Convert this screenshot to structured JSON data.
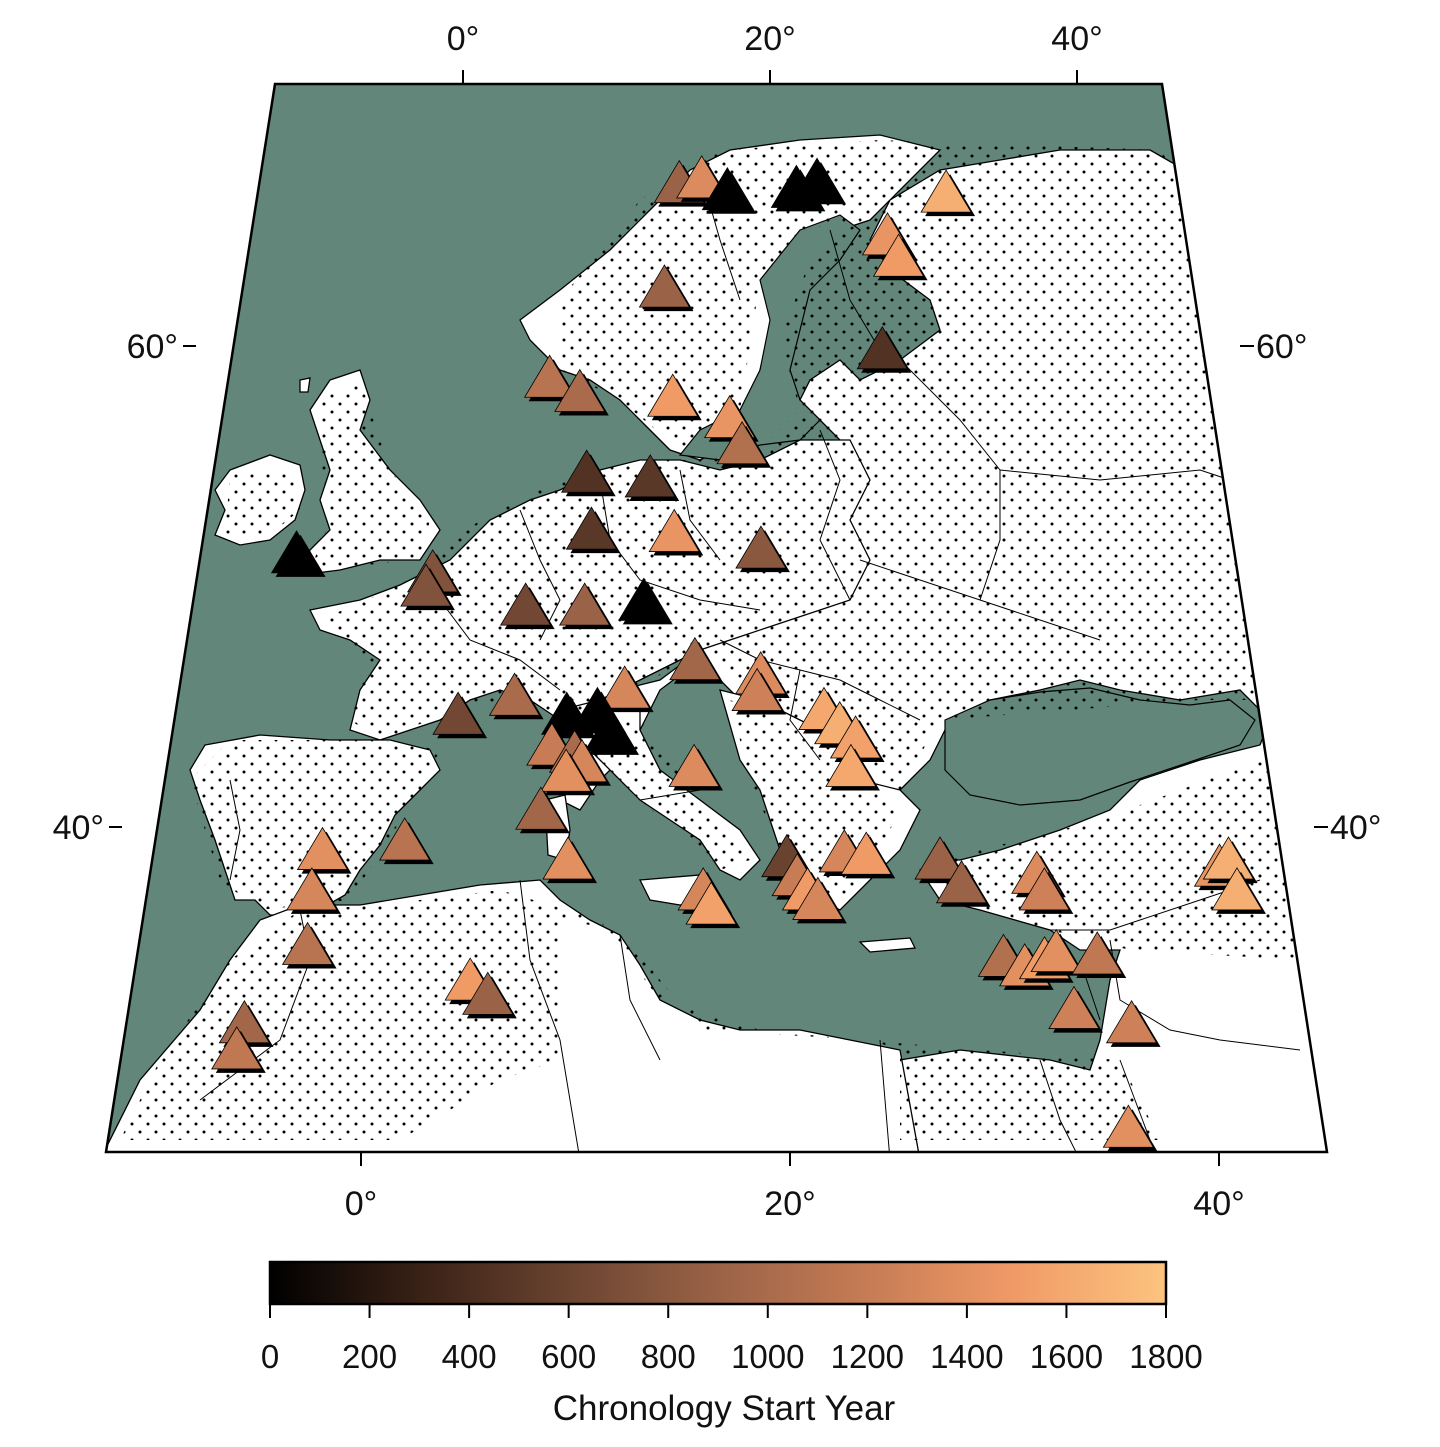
{
  "map": {
    "top_axis_ticks": [
      "0°",
      "20°",
      "40°"
    ],
    "bottom_axis_ticks": [
      "0°",
      "20°",
      "40°"
    ],
    "left_axis_ticks": [
      "60°",
      "40°"
    ],
    "right_axis_ticks": [
      "60°",
      "40°"
    ],
    "colors": {
      "sea": "#62877a",
      "land": "#ffffff",
      "border": "#000000",
      "dots": "#000000"
    }
  },
  "colorbar": {
    "title": "Chronology Start Year",
    "min": 0,
    "max": 1800,
    "ticks": [
      "0",
      "200",
      "400",
      "600",
      "800",
      "1000",
      "1200",
      "1400",
      "1600",
      "1800"
    ],
    "stops": [
      "#000000",
      "#3a2216",
      "#6a4330",
      "#9a6347",
      "#c77c55",
      "#f09a66",
      "#fcc47f"
    ]
  },
  "sites": [
    {
      "lon": 14.2,
      "lat": 70.0,
      "start": 900
    },
    {
      "lon": 15.6,
      "lat": 70.2,
      "start": 1350
    },
    {
      "lon": 17.2,
      "lat": 69.7,
      "start": 0
    },
    {
      "lon": 21.5,
      "lat": 69.8,
      "start": 0
    },
    {
      "lon": 22.8,
      "lat": 70.1,
      "start": 0
    },
    {
      "lon": 30.8,
      "lat": 69.6,
      "start": 1650
    },
    {
      "lon": 27.0,
      "lat": 67.8,
      "start": 1450
    },
    {
      "lon": 27.6,
      "lat": 66.9,
      "start": 1500
    },
    {
      "lon": 13.4,
      "lat": 65.6,
      "start": 900
    },
    {
      "lon": 26.3,
      "lat": 63.0,
      "start": 450
    },
    {
      "lon": 6.8,
      "lat": 61.8,
      "start": 1100
    },
    {
      "lon": 8.6,
      "lat": 61.2,
      "start": 1000
    },
    {
      "lon": 14.0,
      "lat": 61.0,
      "start": 1500
    },
    {
      "lon": 17.3,
      "lat": 60.1,
      "start": 1450
    },
    {
      "lon": 18.0,
      "lat": 59.0,
      "start": 1050
    },
    {
      "lon": 9.2,
      "lat": 57.8,
      "start": 450
    },
    {
      "lon": 12.8,
      "lat": 57.6,
      "start": 500
    },
    {
      "lon": 9.6,
      "lat": 55.4,
      "start": 500
    },
    {
      "lon": 14.2,
      "lat": 55.3,
      "start": 1450
    },
    {
      "lon": 19.0,
      "lat": 54.6,
      "start": 800
    },
    {
      "lon": -6.6,
      "lat": 54.4,
      "start": 0
    },
    {
      "lon": 1.0,
      "lat": 53.6,
      "start": 750
    },
    {
      "lon": 0.7,
      "lat": 53.0,
      "start": 750
    },
    {
      "lon": 6.2,
      "lat": 52.2,
      "start": 650
    },
    {
      "lon": 9.4,
      "lat": 52.2,
      "start": 900
    },
    {
      "lon": 12.6,
      "lat": 52.4,
      "start": 0
    },
    {
      "lon": 15.4,
      "lat": 49.9,
      "start": 950
    },
    {
      "lon": 18.9,
      "lat": 49.3,
      "start": 1350
    },
    {
      "lon": 18.7,
      "lat": 48.6,
      "start": 1250
    },
    {
      "lon": 11.7,
      "lat": 48.7,
      "start": 1300
    },
    {
      "lon": 3.0,
      "lat": 47.6,
      "start": 650
    },
    {
      "lon": 5.9,
      "lat": 48.4,
      "start": 1000
    },
    {
      "lon": 8.7,
      "lat": 47.6,
      "start": 0
    },
    {
      "lon": 10.3,
      "lat": 47.8,
      "start": 0
    },
    {
      "lon": 11.0,
      "lat": 46.9,
      "start": 0
    },
    {
      "lon": 8.0,
      "lat": 46.3,
      "start": 1200
    },
    {
      "lon": 9.2,
      "lat": 46.0,
      "start": 1000
    },
    {
      "lon": 9.6,
      "lat": 45.6,
      "start": 1300
    },
    {
      "lon": 8.8,
      "lat": 45.2,
      "start": 1400
    },
    {
      "lon": 15.4,
      "lat": 45.4,
      "start": 1350
    },
    {
      "lon": 22.2,
      "lat": 47.8,
      "start": 1600
    },
    {
      "lon": 23.0,
      "lat": 47.2,
      "start": 1650
    },
    {
      "lon": 23.8,
      "lat": 46.6,
      "start": 1550
    },
    {
      "lon": 23.5,
      "lat": 45.4,
      "start": 1600
    },
    {
      "lon": 7.6,
      "lat": 43.6,
      "start": 950
    },
    {
      "lon": 0.8,
      "lat": 42.3,
      "start": 1100
    },
    {
      "lon": -3.3,
      "lat": 41.9,
      "start": 1400
    },
    {
      "lon": -3.6,
      "lat": 40.2,
      "start": 1300
    },
    {
      "lon": -3.5,
      "lat": 37.9,
      "start": 1100
    },
    {
      "lon": 9.1,
      "lat": 41.5,
      "start": 1400
    },
    {
      "lon": 15.9,
      "lat": 40.2,
      "start": 1300
    },
    {
      "lon": 16.3,
      "lat": 39.6,
      "start": 1550
    },
    {
      "lon": 20.1,
      "lat": 41.6,
      "start": 600
    },
    {
      "lon": 20.6,
      "lat": 40.8,
      "start": 1200
    },
    {
      "lon": 21.1,
      "lat": 40.2,
      "start": 1500
    },
    {
      "lon": 21.6,
      "lat": 39.8,
      "start": 1300
    },
    {
      "lon": 23.0,
      "lat": 41.8,
      "start": 1300
    },
    {
      "lon": 24.1,
      "lat": 41.7,
      "start": 1500
    },
    {
      "lon": 27.8,
      "lat": 41.5,
      "start": 900
    },
    {
      "lon": 28.8,
      "lat": 40.5,
      "start": 900
    },
    {
      "lon": 32.6,
      "lat": 40.9,
      "start": 1350
    },
    {
      "lon": 32.9,
      "lat": 40.2,
      "start": 1250
    },
    {
      "lon": 41.8,
      "lat": 41.2,
      "start": 1450
    },
    {
      "lon": 42.3,
      "lat": 41.5,
      "start": 1650
    },
    {
      "lon": 42.5,
      "lat": 40.2,
      "start": 1650
    },
    {
      "lon": 4.6,
      "lat": 36.4,
      "start": 1500
    },
    {
      "lon": 5.5,
      "lat": 35.8,
      "start": 900
    },
    {
      "lon": -6.1,
      "lat": 34.6,
      "start": 950
    },
    {
      "lon": -6.3,
      "lat": 33.5,
      "start": 1150
    },
    {
      "lon": 30.6,
      "lat": 37.4,
      "start": 1050
    },
    {
      "lon": 31.6,
      "lat": 37.0,
      "start": 1400
    },
    {
      "lon": 32.6,
      "lat": 37.3,
      "start": 1500
    },
    {
      "lon": 33.2,
      "lat": 37.6,
      "start": 1400
    },
    {
      "lon": 35.2,
      "lat": 37.5,
      "start": 1150
    },
    {
      "lon": 33.8,
      "lat": 35.2,
      "start": 1250
    },
    {
      "lon": 36.5,
      "lat": 34.6,
      "start": 1250
    },
    {
      "lon": 35.8,
      "lat": 30.2,
      "start": 1400
    }
  ]
}
